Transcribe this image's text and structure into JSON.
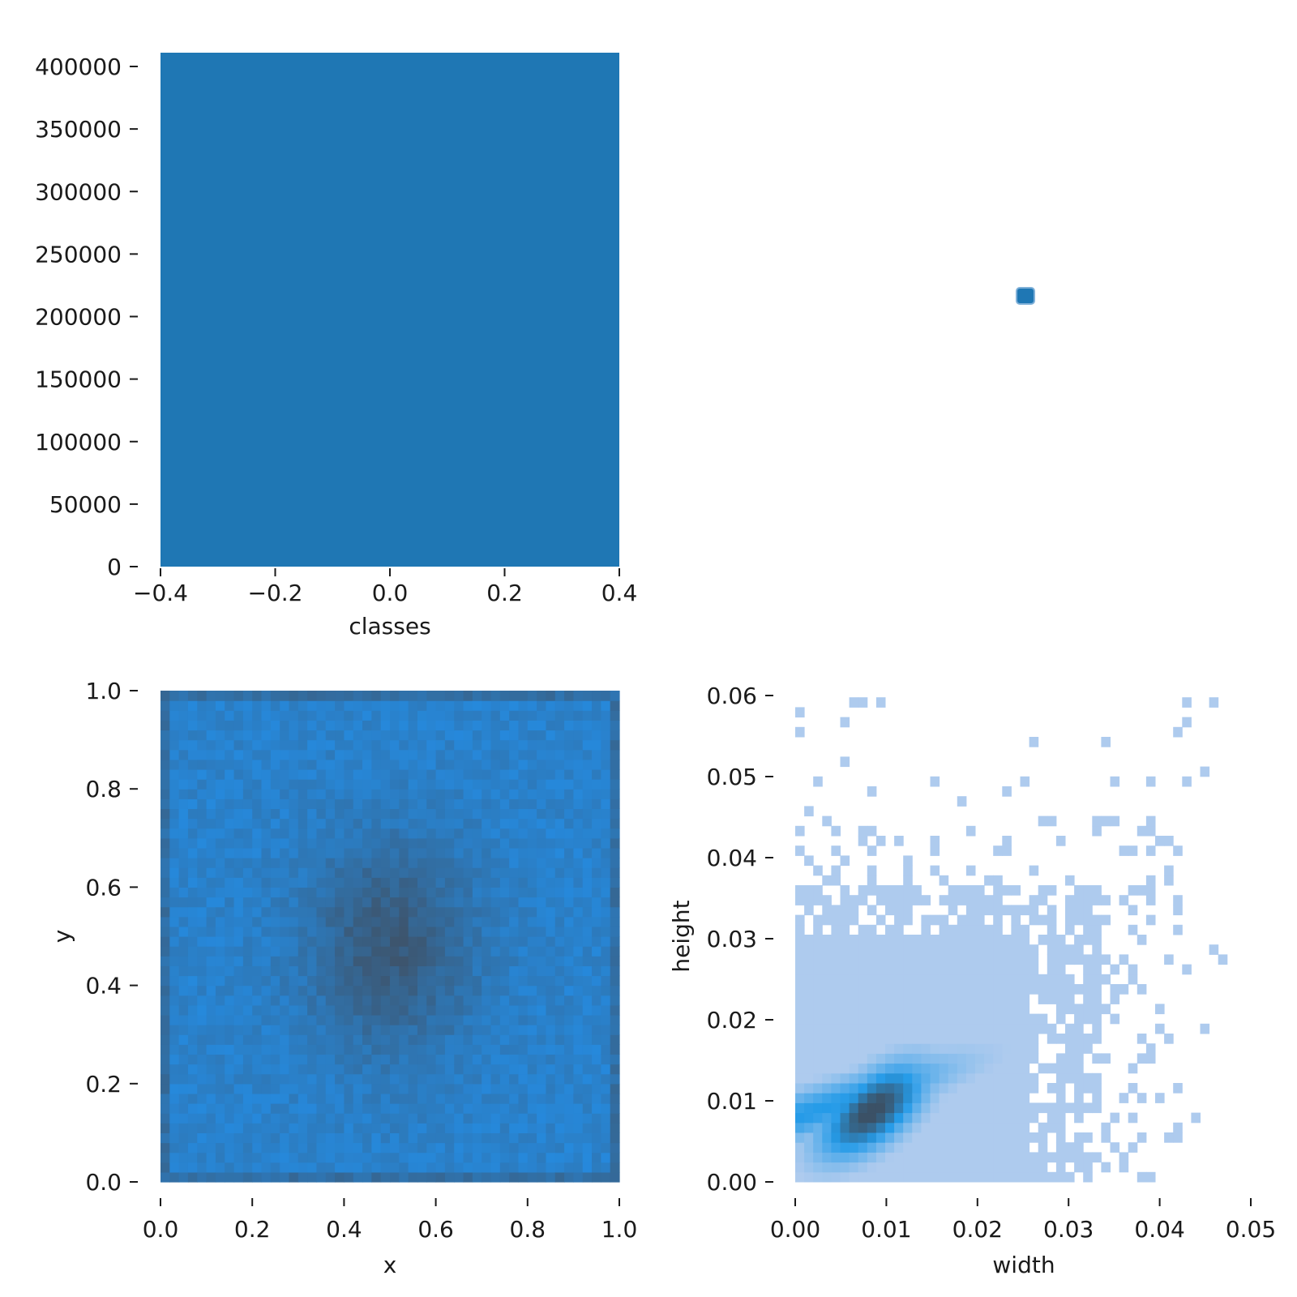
{
  "chart_data": [
    {
      "id": "classes-hist",
      "type": "bar",
      "title": "",
      "xlabel": "classes",
      "ylabel": "",
      "xlim": [
        -0.4,
        0.4
      ],
      "ylim": [
        0,
        410000
      ],
      "xticks": [
        -0.4,
        -0.2,
        0.0,
        0.2,
        0.4
      ],
      "xtick_labels": [
        "−0.4",
        "−0.2",
        "0.0",
        "0.2",
        "0.4"
      ],
      "yticks": [
        0,
        50000,
        100000,
        150000,
        200000,
        250000,
        300000,
        350000,
        400000
      ],
      "ytick_labels": [
        "0",
        "50000",
        "100000",
        "150000",
        "200000",
        "250000",
        "300000",
        "350000",
        "400000"
      ],
      "categories": [
        0
      ],
      "values": [
        410000
      ],
      "color": "#1f77b4"
    },
    {
      "id": "classes-corner",
      "type": "scatter",
      "title": "",
      "xlabel": "",
      "ylabel": "",
      "points": [
        [
          0,
          0
        ]
      ],
      "color": "#1f77b4"
    },
    {
      "id": "xy-hist2d",
      "type": "heatmap",
      "title": "",
      "xlabel": "x",
      "ylabel": "y",
      "xlim": [
        0,
        1
      ],
      "ylim": [
        0,
        1
      ],
      "xticks": [
        0,
        0.2,
        0.4,
        0.6,
        0.8,
        1.0
      ],
      "xtick_labels": [
        "0.0",
        "0.2",
        "0.4",
        "0.6",
        "0.8",
        "1.0"
      ],
      "yticks": [
        0,
        0.2,
        0.4,
        0.6,
        0.8,
        1.0
      ],
      "ytick_labels": [
        "0.0",
        "0.2",
        "0.4",
        "0.6",
        "0.8",
        "1.0"
      ],
      "bins": [
        50,
        50
      ],
      "peak": [
        0.5,
        0.48
      ],
      "low_color": "#258be0",
      "high_color": "#3d556e"
    },
    {
      "id": "wh-hist2d",
      "type": "heatmap",
      "title": "",
      "xlabel": "width",
      "ylabel": "height",
      "xlim": [
        0,
        0.05
      ],
      "ylim": [
        0,
        0.06
      ],
      "xticks": [
        0,
        0.01,
        0.02,
        0.03,
        0.04,
        0.05
      ],
      "xtick_labels": [
        "0.00",
        "0.01",
        "0.02",
        "0.03",
        "0.04",
        "0.05"
      ],
      "yticks": [
        0,
        0.01,
        0.02,
        0.03,
        0.04,
        0.05,
        0.06
      ],
      "ytick_labels": [
        "0.00",
        "0.01",
        "0.02",
        "0.03",
        "0.04",
        "0.05",
        "0.06"
      ],
      "bins": [
        50,
        50
      ],
      "peak": [
        0.0085,
        0.0088
      ],
      "base_color": "#aecbee",
      "mid_color": "#259be8",
      "high_color": "#3b5166"
    }
  ]
}
